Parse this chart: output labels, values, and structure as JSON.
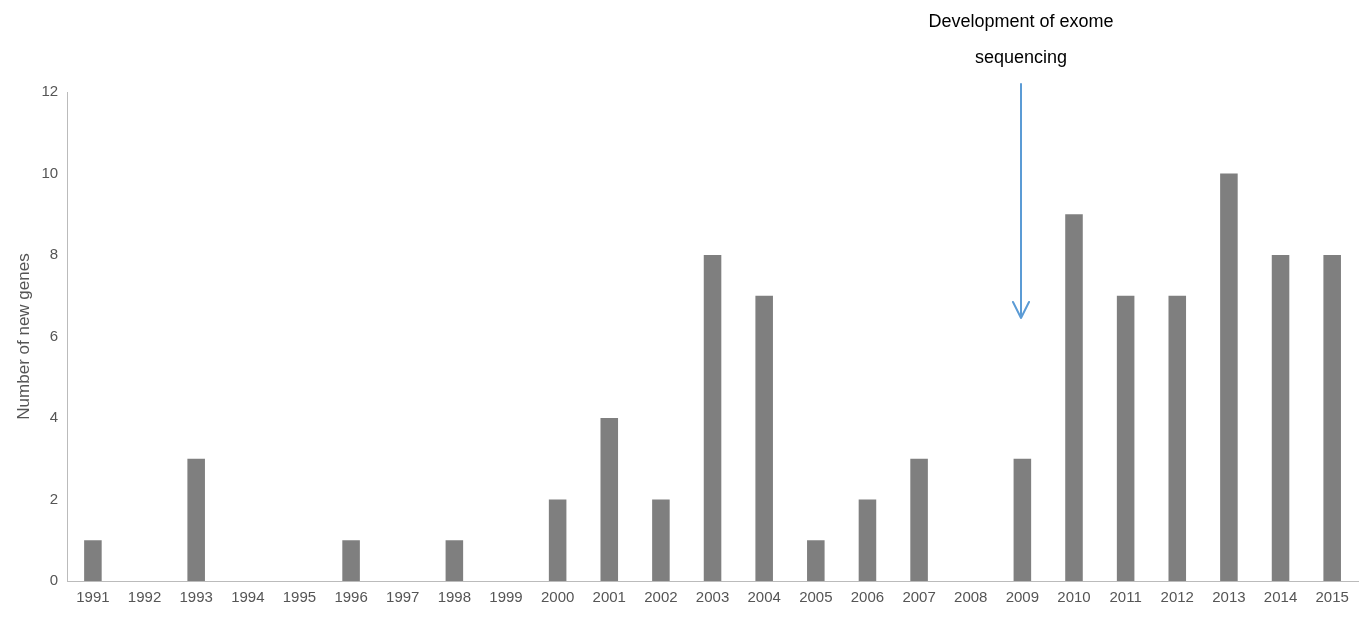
{
  "chart_data": {
    "type": "bar",
    "ylabel": "Number of new genes",
    "categories": [
      "1991",
      "1992",
      "1993",
      "1994",
      "1995",
      "1996",
      "1997",
      "1998",
      "1999",
      "2000",
      "2001",
      "2002",
      "2003",
      "2004",
      "2005",
      "2006",
      "2007",
      "2008",
      "2009",
      "2010",
      "2011",
      "2012",
      "2013",
      "2014",
      "2015"
    ],
    "values": [
      1,
      0,
      3,
      0,
      0,
      1,
      0,
      1,
      0,
      2,
      4,
      2,
      8,
      7,
      1,
      2,
      3,
      0,
      3,
      9,
      7,
      7,
      10,
      8,
      8
    ],
    "color": "#7f7f7f",
    "ylim": [
      0,
      12
    ],
    "yticks": [
      0,
      2,
      4,
      6,
      8,
      10,
      12
    ],
    "grid": false,
    "legend": false,
    "annotations": [
      "Development of exome sequencing"
    ]
  }
}
